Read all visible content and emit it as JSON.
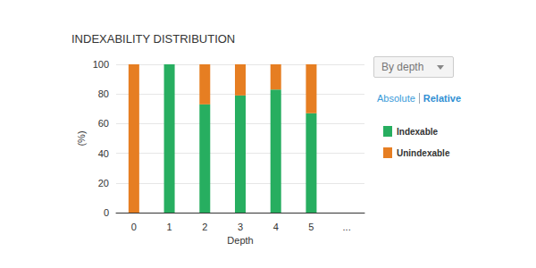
{
  "chart_data": {
    "type": "bar",
    "title": "INDEXABILITY DISTRIBUTION",
    "x_label": "Depth",
    "y_label": "(%)",
    "categories": [
      "0",
      "1",
      "2",
      "3",
      "4",
      "5",
      "..."
    ],
    "series": [
      {
        "name": "Indexable",
        "color": "#27ae60",
        "values": [
          0,
          100,
          73,
          79,
          83,
          67,
          null
        ]
      },
      {
        "name": "Unindexable",
        "color": "#e67e22",
        "values": [
          100,
          0,
          27,
          21,
          17,
          33,
          null
        ]
      }
    ],
    "ylim": [
      0,
      100
    ],
    "yticks": [
      0,
      20,
      40,
      60,
      80,
      100
    ],
    "grid": true,
    "stacked": true,
    "legend": "right"
  },
  "controls": {
    "dropdown": "By depth",
    "view_modes": [
      "Absolute",
      "Relative"
    ],
    "active_view": "Relative"
  }
}
